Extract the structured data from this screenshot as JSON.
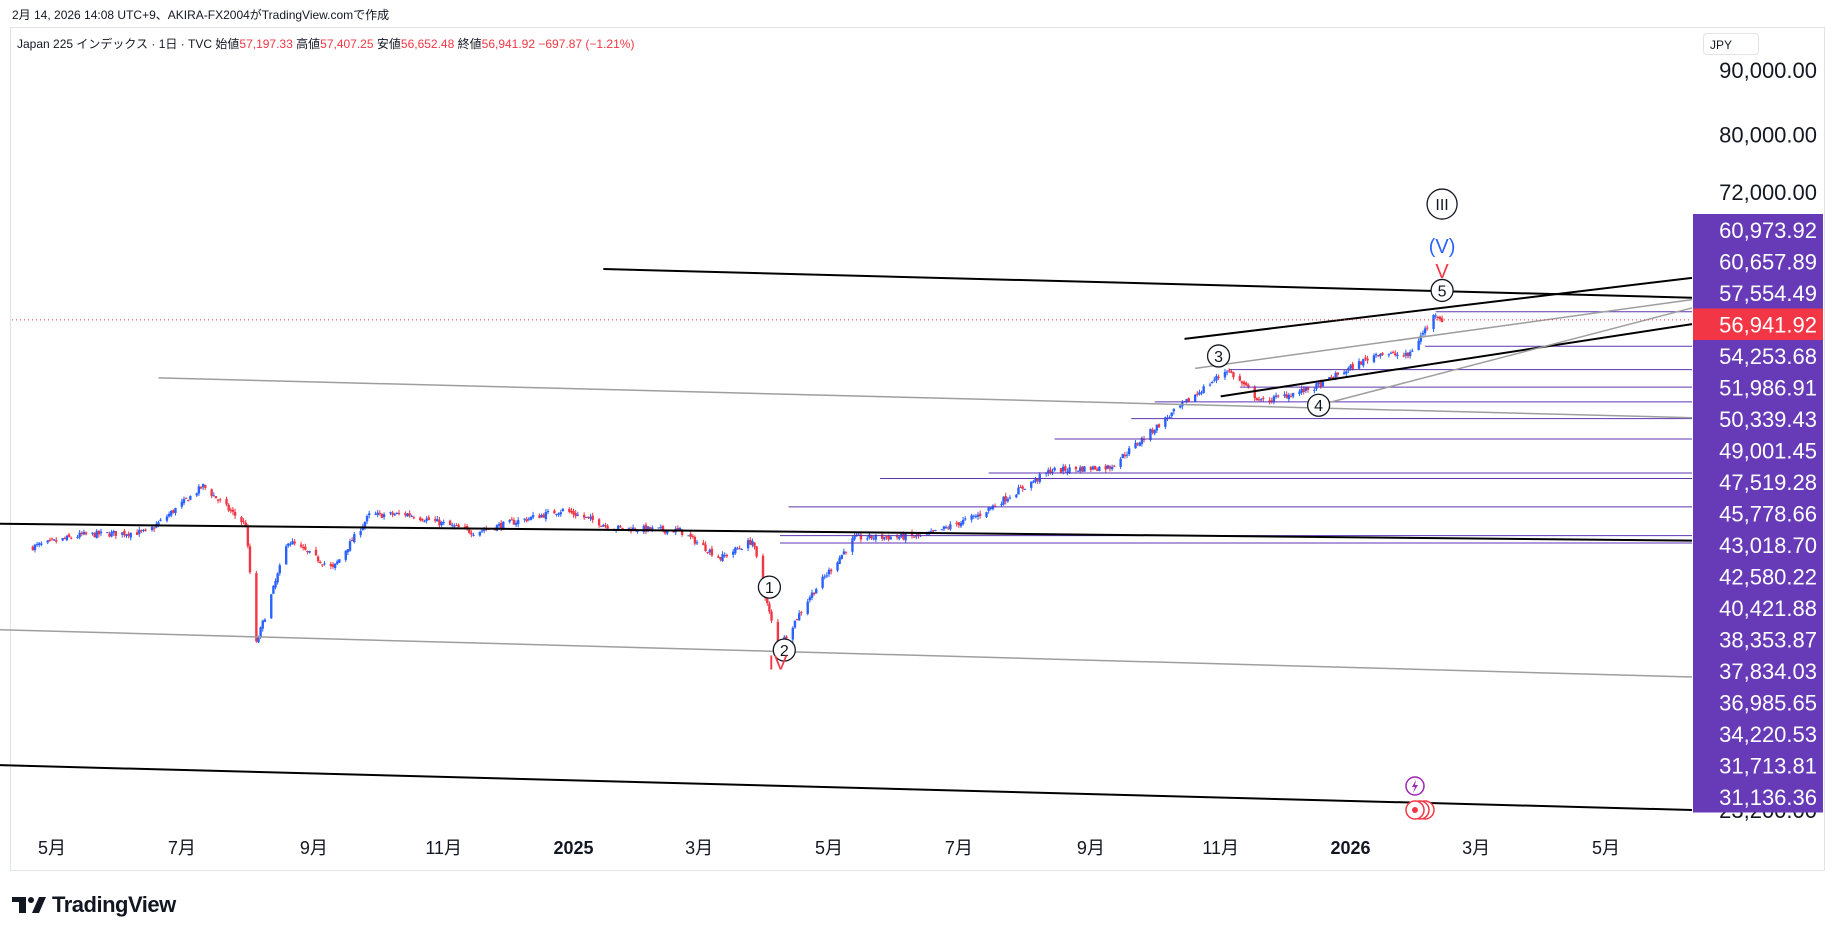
{
  "topbar": {
    "text": "2月 14, 2026 14:08 UTC+9、AKIRA-FX2004がTradingView.comで作成"
  },
  "legend": {
    "symbol": "Japan 225 インデックス · 1日 · TVC",
    "open_label": "始値",
    "open": "57,197.33",
    "high_label": "高値",
    "high": "57,407.25",
    "low_label": "安値",
    "low": "56,652.48",
    "close_label": "終値",
    "close": "56,941.92",
    "change": "−697.87 (−1.21%)"
  },
  "currency": "JPY",
  "footer": {
    "brand": "TradingView"
  },
  "colors": {
    "up": "#2962ff",
    "down": "#f23645",
    "label_bg": "#673ab7",
    "last_price_bg": "#f23645",
    "hline": "#5e35b1",
    "trend_black": "#000000",
    "trend_gray": "#9e9e9e"
  },
  "chart_data": {
    "type": "candlestick",
    "title": "Japan 225 インデックス · 1日 · TVC",
    "x_ticks": [
      {
        "label": "5月",
        "date": "2024-05-01",
        "bold": false
      },
      {
        "label": "7月",
        "date": "2024-07-01",
        "bold": false
      },
      {
        "label": "9月",
        "date": "2024-09-01",
        "bold": false
      },
      {
        "label": "11月",
        "date": "2024-11-01",
        "bold": false
      },
      {
        "label": "2025",
        "date": "2025-01-01",
        "bold": true
      },
      {
        "label": "3月",
        "date": "2025-03-01",
        "bold": false
      },
      {
        "label": "5月",
        "date": "2025-05-01",
        "bold": false
      },
      {
        "label": "7月",
        "date": "2025-07-01",
        "bold": false
      },
      {
        "label": "9月",
        "date": "2025-09-01",
        "bold": false
      },
      {
        "label": "11月",
        "date": "2025-11-01",
        "bold": false
      },
      {
        "label": "2026",
        "date": "2026-01-01",
        "bold": true
      },
      {
        "label": "3月",
        "date": "2026-03-01",
        "bold": false
      },
      {
        "label": "5月",
        "date": "2026-05-01",
        "bold": false
      }
    ],
    "y_scale": "log",
    "y_ticks": [
      "90,000.00",
      "80,000.00",
      "72,000.00",
      "23,200.00"
    ],
    "price_labels": [
      "60,973.92",
      "60,657.89",
      "57,554.49",
      "54,253.68",
      "51,986.91",
      "50,339.43",
      "49,001.45",
      "47,519.28",
      "45,778.66",
      "43,018.70",
      "42,580.22",
      "40,421.88",
      "38,353.87",
      "37,834.03",
      "36,985.65",
      "34,220.53",
      "31,713.81",
      "31,136.36"
    ],
    "last_price": "56,941.92",
    "series": [
      {
        "date": "2024-04-20",
        "close": 37500
      },
      {
        "date": "2024-05-15",
        "close": 38400
      },
      {
        "date": "2024-06-15",
        "close": 38600
      },
      {
        "date": "2024-07-11",
        "close": 42000
      },
      {
        "date": "2024-07-31",
        "close": 39100
      },
      {
        "date": "2024-08-05",
        "close": 31458
      },
      {
        "date": "2024-08-20",
        "close": 38000
      },
      {
        "date": "2024-09-10",
        "close": 36100
      },
      {
        "date": "2024-09-27",
        "close": 39800
      },
      {
        "date": "2024-10-15",
        "close": 39900
      },
      {
        "date": "2024-11-15",
        "close": 38600
      },
      {
        "date": "2024-12-27",
        "close": 40200
      },
      {
        "date": "2025-01-20",
        "close": 38900
      },
      {
        "date": "2025-02-20",
        "close": 38700
      },
      {
        "date": "2025-03-11",
        "close": 36800
      },
      {
        "date": "2025-03-26",
        "close": 38000
      },
      {
        "date": "2025-04-07",
        "close": 31136
      },
      {
        "date": "2025-04-22",
        "close": 34300
      },
      {
        "date": "2025-05-13",
        "close": 38200
      },
      {
        "date": "2025-06-15",
        "close": 38300
      },
      {
        "date": "2025-07-10",
        "close": 39800
      },
      {
        "date": "2025-08-13",
        "close": 43200
      },
      {
        "date": "2025-09-10",
        "close": 43500
      },
      {
        "date": "2025-10-10",
        "close": 48100
      },
      {
        "date": "2025-11-04",
        "close": 52000
      },
      {
        "date": "2025-11-20",
        "close": 49000
      },
      {
        "date": "2025-12-15",
        "close": 50300
      },
      {
        "date": "2026-01-14",
        "close": 53600
      },
      {
        "date": "2026-01-28",
        "close": 53300
      },
      {
        "date": "2026-02-10",
        "close": 57650
      },
      {
        "date": "2026-02-13",
        "close": 56941.92
      }
    ],
    "wave_labels": [
      {
        "text": "1",
        "circled": true,
        "date": "2025-04-03",
        "price": 34900
      },
      {
        "text": "2",
        "circled": true,
        "date": "2025-04-10",
        "price": 31100
      },
      {
        "text": "IV",
        "circled": false,
        "color": "#f23645",
        "date": "2025-04-07",
        "price": 30400
      },
      {
        "text": "3",
        "circled": true,
        "date": "2025-10-31",
        "price": 53300
      },
      {
        "text": "4",
        "circled": true,
        "date": "2025-12-17",
        "price": 48700
      },
      {
        "text": "5",
        "circled": true,
        "date": "2026-02-13",
        "price": 60100
      },
      {
        "text": "V",
        "circled": false,
        "color": "#f23645",
        "date": "2026-02-13",
        "price": 62300
      },
      {
        "text": "(V)",
        "circled": false,
        "color": "#2962ff",
        "date": "2026-02-13",
        "price": 65200
      },
      {
        "text": "III",
        "circled": true,
        "date": "2026-02-13",
        "price": 70400
      }
    ],
    "trendlines": [
      {
        "color": "#000000",
        "width": 2,
        "from": {
          "date": "2024-04-01",
          "price": 39200
        },
        "to": {
          "date": "2026-07-15",
          "price": 38000
        }
      },
      {
        "color": "#000000",
        "width": 2,
        "from": {
          "date": "2024-04-01",
          "price": 25200
        },
        "to": {
          "date": "2026-07-15",
          "price": 23200
        }
      },
      {
        "color": "#000000",
        "width": 2,
        "from": {
          "date": "2025-01-15",
          "price": 62500
        },
        "to": {
          "date": "2026-07-15",
          "price": 59300
        }
      },
      {
        "color": "#000000",
        "width": 2,
        "from": {
          "date": "2025-10-15",
          "price": 55000
        },
        "to": {
          "date": "2026-07-15",
          "price": 61500
        }
      },
      {
        "color": "#000000",
        "width": 2,
        "from": {
          "date": "2025-11-01",
          "price": 49500
        },
        "to": {
          "date": "2026-07-15",
          "price": 56500
        }
      },
      {
        "color": "#9e9e9e",
        "width": 1.5,
        "from": {
          "date": "2024-04-01",
          "price": 32300
        },
        "to": {
          "date": "2026-07-15",
          "price": 29600
        }
      },
      {
        "color": "#9e9e9e",
        "width": 1.5,
        "from": {
          "date": "2024-06-20",
          "price": 51200
        },
        "to": {
          "date": "2026-07-15",
          "price": 47600
        }
      },
      {
        "color": "#9e9e9e",
        "width": 1.5,
        "from": {
          "date": "2025-10-20",
          "price": 52100
        },
        "to": {
          "date": "2026-07-15",
          "price": 59100
        }
      },
      {
        "color": "#9e9e9e",
        "width": 1.5,
        "from": {
          "date": "2025-12-15",
          "price": 48600
        },
        "to": {
          "date": "2026-07-15",
          "price": 58200
        }
      }
    ],
    "hlines": [
      {
        "price": 57800,
        "from": "2026-02-10"
      },
      {
        "price": 54253.68,
        "from": "2026-02-05"
      },
      {
        "price": 51986.91,
        "from": "2025-11-05"
      },
      {
        "price": 50339.43,
        "from": "2025-11-10"
      },
      {
        "price": 49001.45,
        "from": "2025-10-01"
      },
      {
        "price": 47519.28,
        "from": "2025-09-20"
      },
      {
        "price": 45778.66,
        "from": "2025-08-15"
      },
      {
        "price": 43018.7,
        "from": "2025-07-15"
      },
      {
        "price": 42580.22,
        "from": "2025-05-25"
      },
      {
        "price": 40421.88,
        "from": "2025-04-12"
      },
      {
        "price": 38353.87,
        "from": "2025-04-08"
      },
      {
        "price": 37834.03,
        "from": "2025-04-08"
      }
    ]
  }
}
